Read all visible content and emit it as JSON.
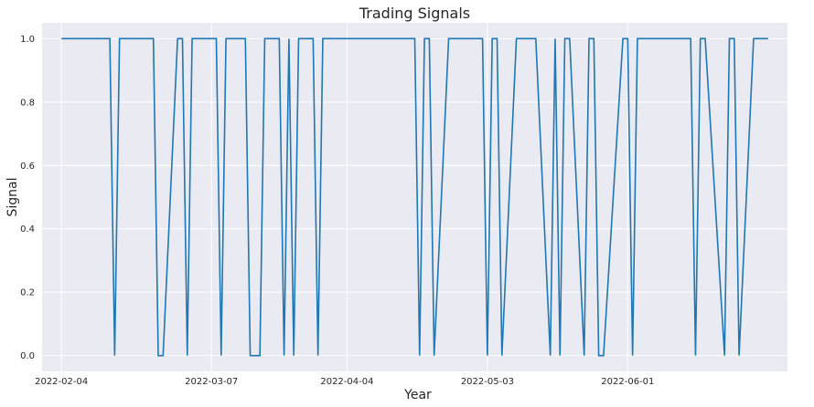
{
  "chart_data": {
    "type": "line",
    "title": "Trading Signals",
    "xlabel": "Year",
    "ylabel": "Signal",
    "grid": true,
    "xlim": [
      "2022-01-31",
      "2022-07-04"
    ],
    "ylim": [
      -0.05,
      1.05
    ],
    "x_ticks": [
      "2022-02-04",
      "2022-03-07",
      "2022-04-04",
      "2022-05-03",
      "2022-06-01"
    ],
    "y_ticks": [
      "0.0",
      "0.2",
      "0.4",
      "0.6",
      "0.8",
      "1.0"
    ],
    "colors": {
      "line": "#1f77b4",
      "plot_background": "#eaeaf2",
      "grid": "#ffffff"
    },
    "series": [
      {
        "x": [
          "2022-02-04",
          "2022-02-07",
          "2022-02-08",
          "2022-02-09",
          "2022-02-10",
          "2022-02-11",
          "2022-02-14",
          "2022-02-15",
          "2022-02-16",
          "2022-02-17",
          "2022-02-18",
          "2022-02-22",
          "2022-02-23",
          "2022-02-24",
          "2022-02-25",
          "2022-02-28",
          "2022-03-01",
          "2022-03-02",
          "2022-03-03",
          "2022-03-04",
          "2022-03-07",
          "2022-03-08",
          "2022-03-09",
          "2022-03-10",
          "2022-03-11",
          "2022-03-14",
          "2022-03-15",
          "2022-03-16",
          "2022-03-17",
          "2022-03-18",
          "2022-03-21",
          "2022-03-22",
          "2022-03-23",
          "2022-03-24",
          "2022-03-25",
          "2022-03-28",
          "2022-03-29",
          "2022-03-30",
          "2022-03-31",
          "2022-04-01",
          "2022-04-04",
          "2022-04-05",
          "2022-04-06",
          "2022-04-07",
          "2022-04-08",
          "2022-04-11",
          "2022-04-12",
          "2022-04-13",
          "2022-04-14",
          "2022-04-18",
          "2022-04-19",
          "2022-04-20",
          "2022-04-21",
          "2022-04-22",
          "2022-04-25",
          "2022-04-26",
          "2022-04-27",
          "2022-04-28",
          "2022-04-29",
          "2022-05-02",
          "2022-05-03",
          "2022-05-04",
          "2022-05-05",
          "2022-05-06",
          "2022-05-09",
          "2022-05-10",
          "2022-05-11",
          "2022-05-12",
          "2022-05-13",
          "2022-05-16",
          "2022-05-17",
          "2022-05-18",
          "2022-05-19",
          "2022-05-20",
          "2022-05-23",
          "2022-05-24",
          "2022-05-25",
          "2022-05-26",
          "2022-05-27",
          "2022-05-31",
          "2022-06-01",
          "2022-06-02",
          "2022-06-03",
          "2022-06-06",
          "2022-06-07",
          "2022-06-08",
          "2022-06-09",
          "2022-06-10",
          "2022-06-13",
          "2022-06-14",
          "2022-06-15",
          "2022-06-16",
          "2022-06-17",
          "2022-06-21",
          "2022-06-22",
          "2022-06-23",
          "2022-06-24",
          "2022-06-27",
          "2022-06-28",
          "2022-06-29",
          "2022-06-30"
        ],
        "values": [
          1,
          1,
          1,
          1,
          1,
          1,
          1,
          0,
          1,
          1,
          1,
          1,
          1,
          0,
          0,
          1,
          1,
          0,
          1,
          1,
          1,
          1,
          0,
          1,
          1,
          1,
          0,
          0,
          0,
          1,
          1,
          0,
          1,
          0,
          1,
          1,
          0,
          1,
          1,
          1,
          1,
          1,
          1,
          1,
          1,
          1,
          1,
          1,
          1,
          1,
          0,
          1,
          1,
          0,
          1,
          1,
          1,
          1,
          1,
          1,
          0,
          1,
          1,
          0,
          1,
          1,
          1,
          1,
          1,
          0,
          1,
          0,
          1,
          1,
          0,
          1,
          1,
          0,
          0,
          1,
          1,
          0,
          1,
          1,
          1,
          1,
          1,
          1,
          1,
          1,
          0,
          1,
          1,
          0,
          1,
          1,
          0,
          1,
          1,
          1,
          1
        ]
      }
    ]
  }
}
